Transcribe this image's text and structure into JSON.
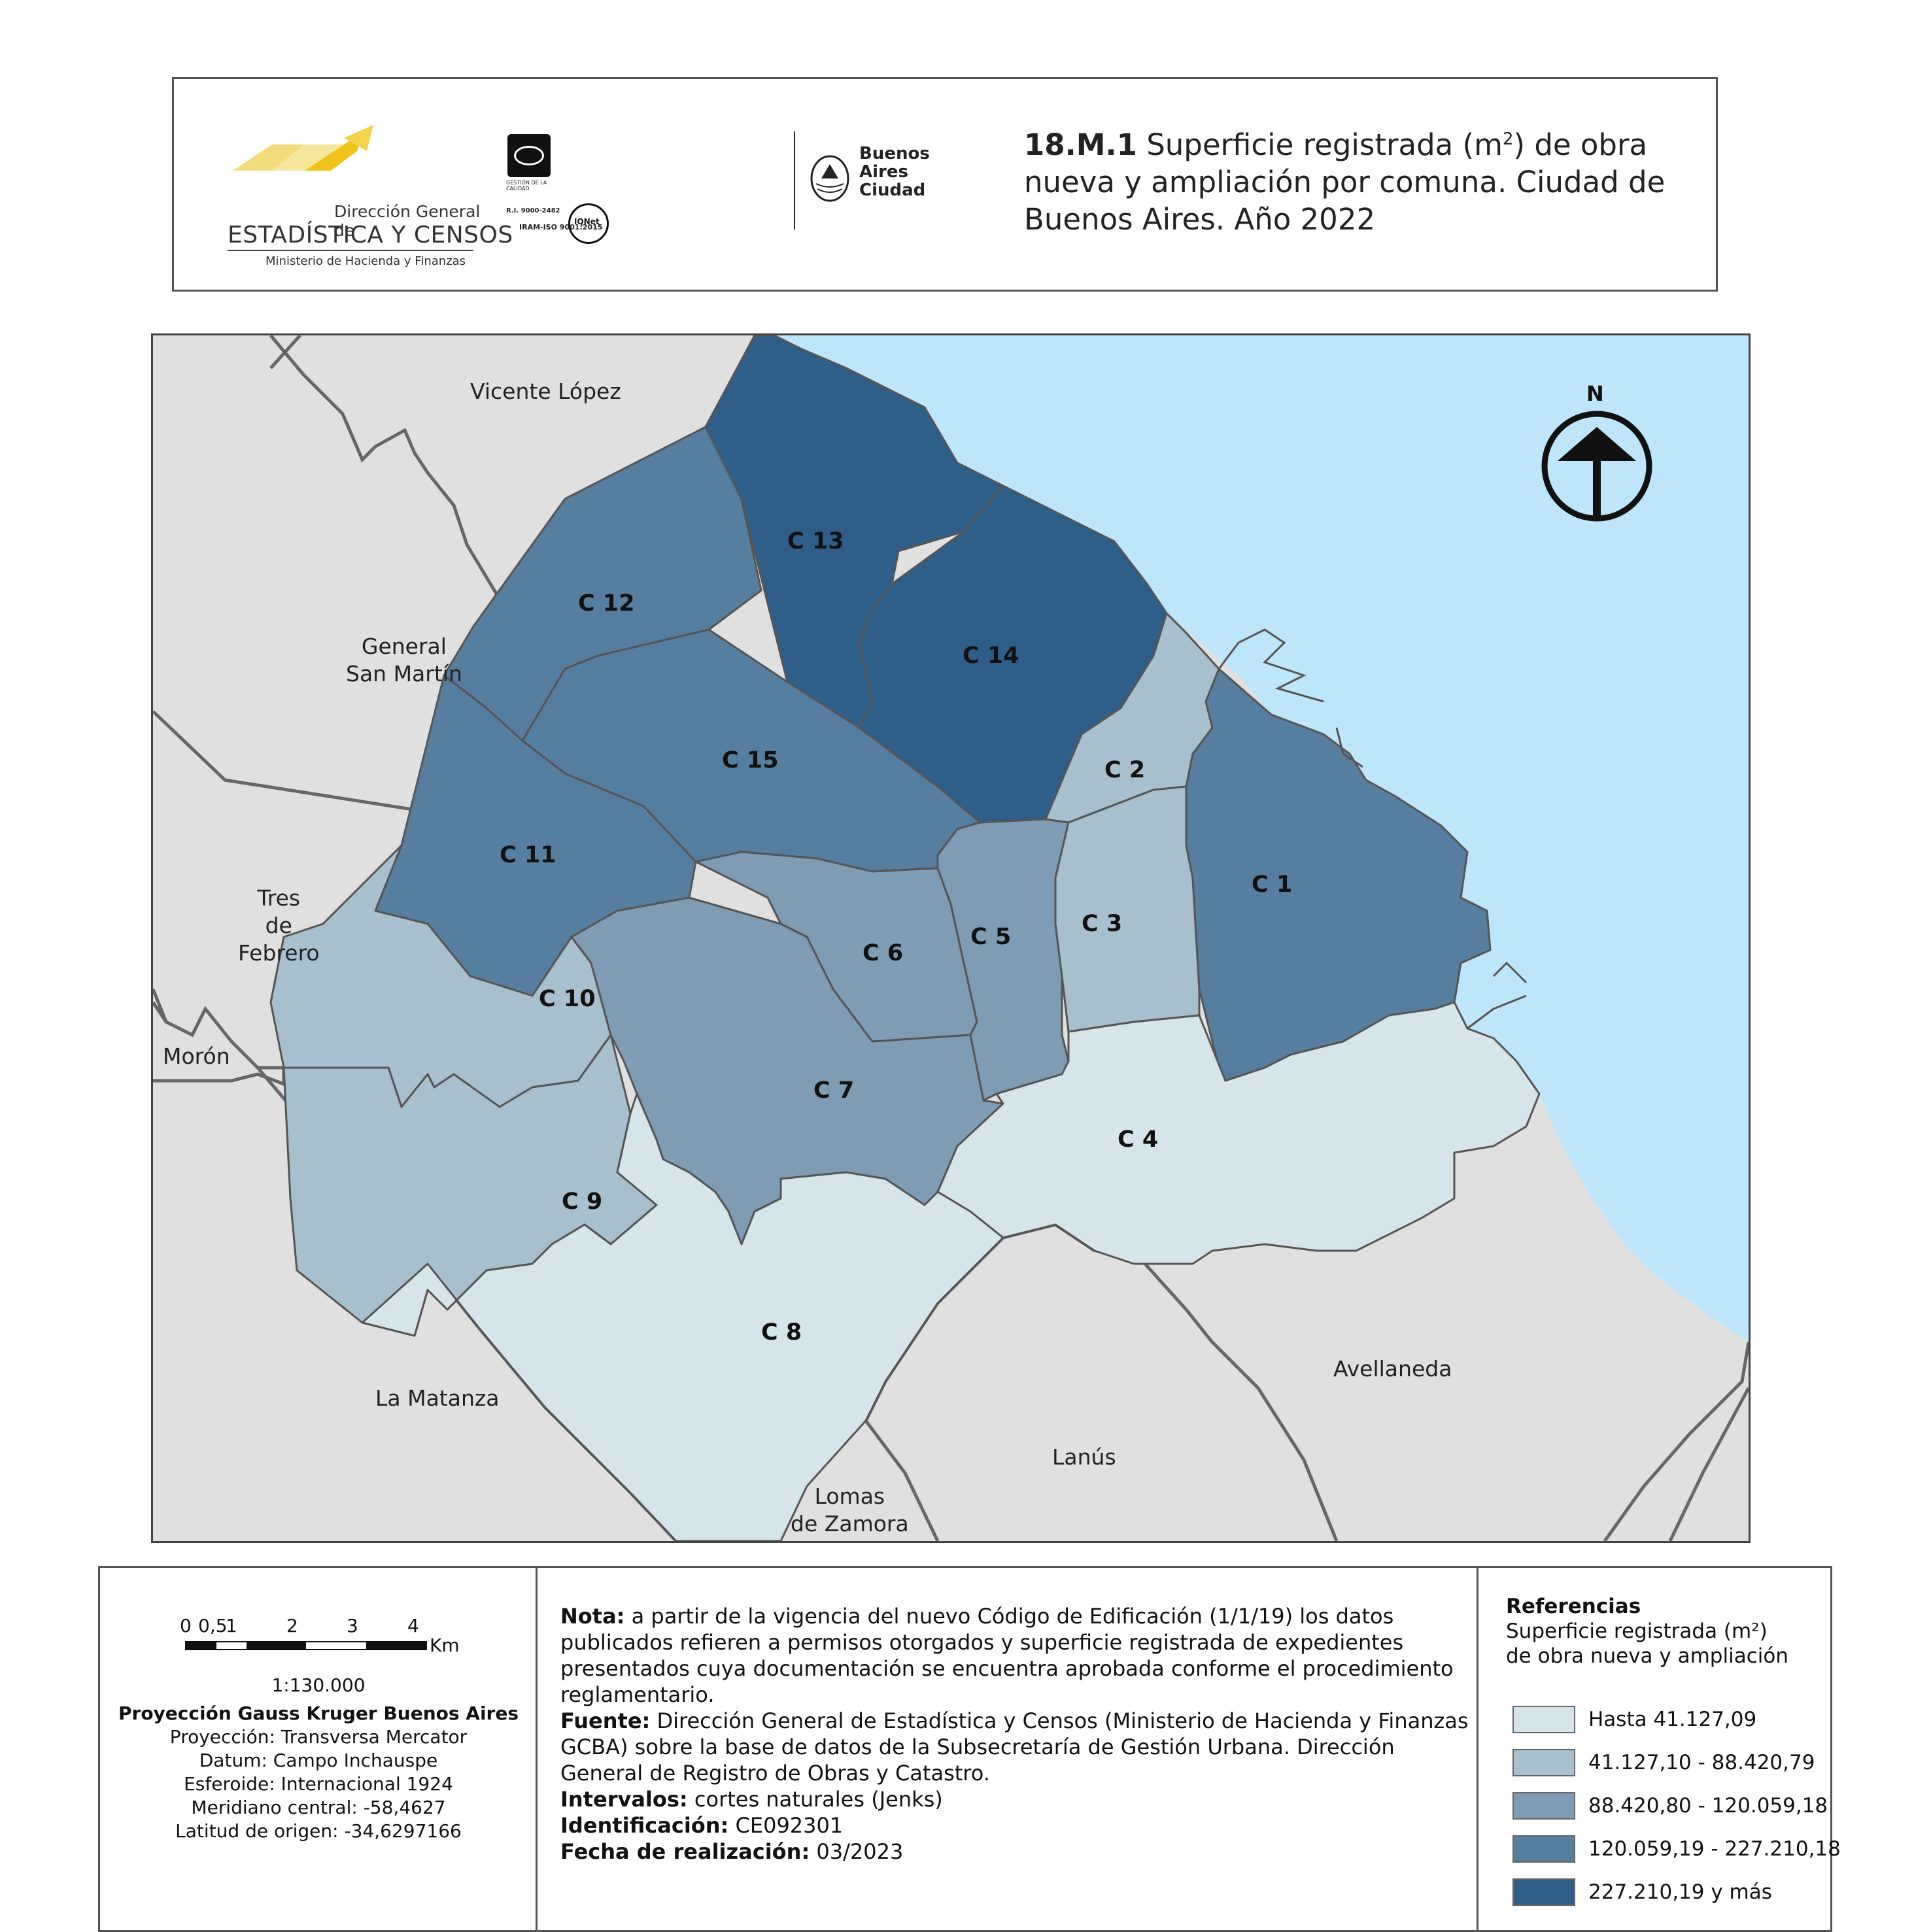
{
  "header": {
    "logo_dgec": {
      "line1": "Dirección General de",
      "line2": "ESTADÍSTICA Y CENSOS",
      "line3": "Ministerio de Hacienda y Finanzas"
    },
    "certification": {
      "gestion": "GESTIÓN DE LA CALIDAD",
      "ri": "R.I. 9000-2482",
      "iso": "IRAM-ISO 9001:2015",
      "iqnet": "IQNet"
    },
    "logo_ba": {
      "line1": "Buenos",
      "line2": "Aires",
      "line3": "Ciudad"
    },
    "title": {
      "number": "18.M.1",
      "pre": "Superficie registrada (m",
      "sup": "2",
      "post": ") de obra nueva y ampliación por comuna. Ciudad de Buenos Aires. Año 2022"
    }
  },
  "map": {
    "colors": {
      "class1": "#d5e5ea",
      "class2": "#a8bfcd",
      "class3": "#7e9cb4",
      "class4": "#557e9f",
      "class5": "#2f5f88",
      "neighbors": "#e0e0e0",
      "water": "#bde6fb",
      "border": "#555555"
    },
    "north_label": "N",
    "north_icon": "north-arrow-icon",
    "neighbors": [
      {
        "id": "vicente-lopez",
        "label": "Vicente López"
      },
      {
        "id": "general-san-martin",
        "label": "General\nSan Martín"
      },
      {
        "id": "tres-de-febrero",
        "label": "Tres\nde\nFebrero"
      },
      {
        "id": "moron",
        "label": "Morón"
      },
      {
        "id": "la-matanza",
        "label": "La Matanza"
      },
      {
        "id": "lomas-de-zamora",
        "label": "Lomas\nde Zamora"
      },
      {
        "id": "lanus",
        "label": "Lanús"
      },
      {
        "id": "avellaneda",
        "label": "Avellaneda"
      }
    ],
    "comunas": [
      {
        "id": "c1",
        "label": "C 1",
        "class": 4
      },
      {
        "id": "c2",
        "label": "C 2",
        "class": 2
      },
      {
        "id": "c3",
        "label": "C 3",
        "class": 2
      },
      {
        "id": "c4",
        "label": "C 4",
        "class": 1
      },
      {
        "id": "c5",
        "label": "C 5",
        "class": 3
      },
      {
        "id": "c6",
        "label": "C 6",
        "class": 3
      },
      {
        "id": "c7",
        "label": "C 7",
        "class": 3
      },
      {
        "id": "c8",
        "label": "C 8",
        "class": 1
      },
      {
        "id": "c9",
        "label": "C 9",
        "class": 2
      },
      {
        "id": "c10",
        "label": "C 10",
        "class": 2
      },
      {
        "id": "c11",
        "label": "C 11",
        "class": 4
      },
      {
        "id": "c12",
        "label": "C 12",
        "class": 4
      },
      {
        "id": "c13",
        "label": "C 13",
        "class": 5
      },
      {
        "id": "c14",
        "label": "C 14",
        "class": 5
      },
      {
        "id": "c15",
        "label": "C 15",
        "class": 4
      }
    ]
  },
  "footer": {
    "scale": {
      "ticks": [
        "0",
        "0,5",
        "1",
        "2",
        "3",
        "4"
      ],
      "unit": "Km",
      "ratio": "1:130.000",
      "projection_title": "Proyección Gauss Kruger Buenos Aires",
      "projection_lines": [
        "Proyección: Transversa Mercator",
        "Datum: Campo Inchauspe",
        "Esferoide: Internacional 1924",
        "Meridiano central: -58,4627",
        "Latitud de origen: -34,6297166"
      ]
    },
    "notes": {
      "nota_label": "Nota:",
      "nota_text": "a partir de la vigencia del nuevo Código de Edificación (1/1/19) los datos publicados refieren a permisos otorgados y superficie registrada de expedientes presentados cuya documentación se encuentra aprobada conforme el procedimiento reglamentario.",
      "fuente_label": "Fuente:",
      "fuente_text": "Dirección General de Estadística y Censos (Ministerio de Hacienda y Finanzas GCBA) sobre la base de datos de la Subsecretaría de Gestión Urbana. Dirección General de Registro de Obras y Catastro.",
      "intervalos_label": "Intervalos:",
      "intervalos_text": "cortes naturales (Jenks)",
      "id_label": "Identificación:",
      "id_text": "CE092301",
      "fecha_label": "Fecha de realización:",
      "fecha_text": "03/2023"
    },
    "legend": {
      "title": "Referencias",
      "subtitle_line1": "Superficie registrada (m²)",
      "subtitle_line2": "de obra nueva y ampliación",
      "items": [
        {
          "label": "Hasta 41.127,09",
          "color": "#d5e5ea"
        },
        {
          "label": "41.127,10 - 88.420,79",
          "color": "#a8bfcd"
        },
        {
          "label": "88.420,80 - 120.059,18",
          "color": "#7e9cb4"
        },
        {
          "label": "120.059,19 - 227.210,18",
          "color": "#557e9f"
        },
        {
          "label": "227.210,19 y más",
          "color": "#2f5f88"
        }
      ]
    }
  }
}
